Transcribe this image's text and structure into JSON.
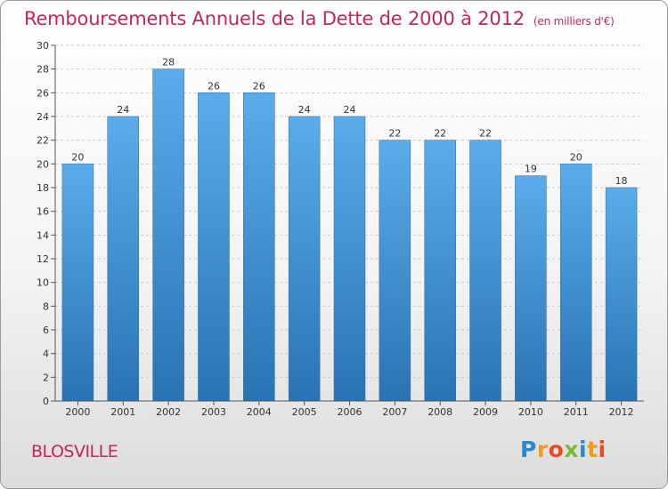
{
  "chart_data": {
    "type": "bar",
    "title": "Remboursements Annuels de la Dette de 2000 à 2012",
    "subtitle": "(en milliers d'€)",
    "categories": [
      "2000",
      "2001",
      "2002",
      "2003",
      "2004",
      "2005",
      "2006",
      "2007",
      "2008",
      "2009",
      "2010",
      "2011",
      "2012"
    ],
    "values": [
      20,
      24,
      28,
      26,
      26,
      24,
      24,
      22,
      22,
      22,
      19,
      20,
      18
    ],
    "yticks": [
      0,
      2,
      4,
      6,
      8,
      10,
      12,
      14,
      16,
      18,
      20,
      22,
      24,
      26,
      28,
      30
    ],
    "ylim": [
      0,
      30
    ],
    "xlabel": "",
    "ylabel": "",
    "grid": true,
    "bar_color": "#4f9fdf"
  },
  "footer": {
    "commune": "BLOSVILLE",
    "logo_letters": [
      "P",
      "r",
      "o",
      "x",
      "i",
      "t",
      "i"
    ],
    "logo_colors": [
      "#2f86c8",
      "#f39b1a",
      "#e84a24",
      "#7cb833",
      "#2f86c8",
      "#f39b1a",
      "#e84a24"
    ]
  }
}
